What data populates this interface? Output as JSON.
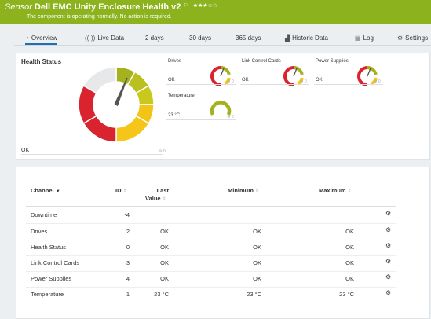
{
  "header": {
    "sensor_word": "Sensor",
    "sensor_name": "Dell EMC Unity Enclosure Health v2",
    "flag_icon": "flag-icon",
    "stars": "★★★☆☆",
    "status_text": "The component is operating normally. No action is required.",
    "color": "#8cb21e"
  },
  "tabs": [
    {
      "label": "Overview",
      "icon": "gauge-icon"
    },
    {
      "label": "Live Data",
      "icon": "live-data-icon"
    },
    {
      "label": "2  days"
    },
    {
      "label": "30  days"
    },
    {
      "label": "365  days"
    },
    {
      "label": "Historic Data",
      "icon": "chart-icon"
    },
    {
      "label": "Log",
      "icon": "log-icon"
    },
    {
      "label": "Settings",
      "icon": "gear-icon"
    }
  ],
  "overview": {
    "health_status": {
      "title": "Health Status",
      "value": "OK"
    },
    "mini_gauges": [
      {
        "label": "Drives",
        "value": "OK"
      },
      {
        "label": "Link Control Cards",
        "value": "OK"
      },
      {
        "label": "Power Supplies",
        "value": "OK"
      },
      {
        "label": "Temperature",
        "value": "23 °C"
      }
    ],
    "tiny_icon": "0"
  },
  "table": {
    "headers": {
      "channel": "Channel",
      "id": "ID",
      "last_value_1": "Last",
      "last_value_2": "Value",
      "minimum": "Minimum",
      "maximum": "Maximum"
    },
    "rows": [
      {
        "channel": "Downtime",
        "id": "-4",
        "last": "",
        "min": "",
        "max": ""
      },
      {
        "channel": "Drives",
        "id": "2",
        "last": "OK",
        "min": "OK",
        "max": "OK"
      },
      {
        "channel": "Health Status",
        "id": "0",
        "last": "OK",
        "min": "OK",
        "max": "OK"
      },
      {
        "channel": "Link Control Cards",
        "id": "3",
        "last": "OK",
        "min": "OK",
        "max": "OK"
      },
      {
        "channel": "Power Supplies",
        "id": "4",
        "last": "OK",
        "min": "OK",
        "max": "OK"
      },
      {
        "channel": "Temperature",
        "id": "1",
        "last": "23 °C",
        "min": "23 °C",
        "max": "23 °C"
      }
    ]
  }
}
